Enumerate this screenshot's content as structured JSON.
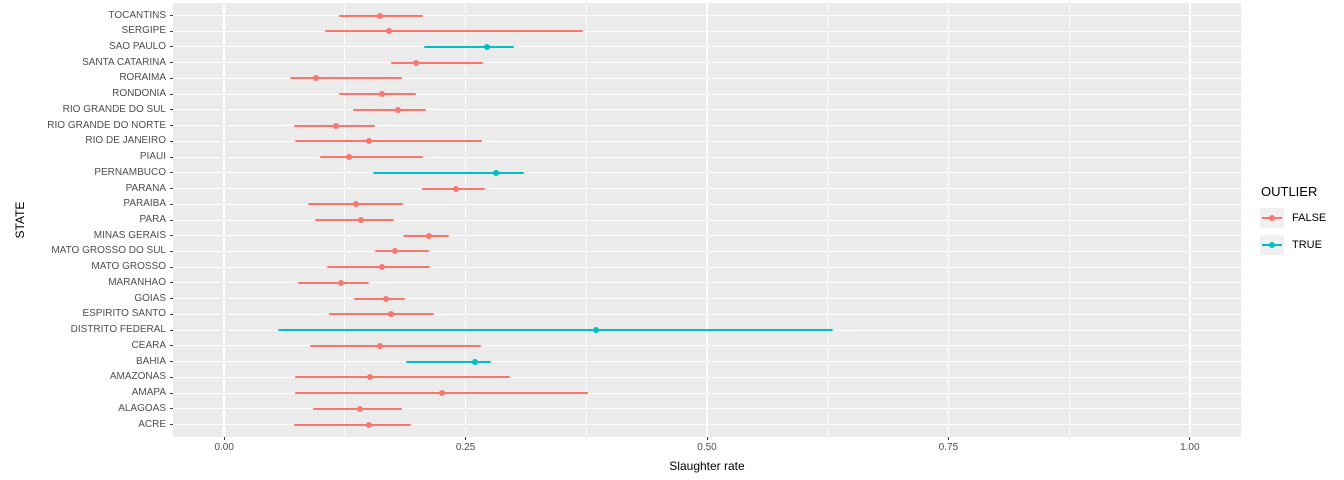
{
  "chart_data": {
    "type": "scatter",
    "title": "",
    "xlabel": "Slaughter rate",
    "ylabel": "STATE",
    "xlim": [
      -0.053,
      1.053
    ],
    "grid": true,
    "x_ticks": [
      {
        "label": "0.00",
        "value": 0.0
      },
      {
        "label": "0.25",
        "value": 0.25
      },
      {
        "label": "0.50",
        "value": 0.5
      },
      {
        "label": "0.75",
        "value": 0.75
      },
      {
        "label": "1.00",
        "value": 1.0
      }
    ],
    "x_minor_values": [
      0.125,
      0.375,
      0.625,
      0.875
    ],
    "legend": {
      "title": "OUTLIER",
      "position": "right",
      "entries": [
        {
          "label": "FALSE",
          "color": "#F8766D"
        },
        {
          "label": "TRUE",
          "color": "#00BFC4"
        }
      ]
    },
    "colors": {
      "false_series": "#F8766D",
      "true_series": "#00BFC4",
      "panel_background": "#EBEBEB",
      "gridline": "#FFFFFF",
      "tick_text": "#4D4D4D",
      "axis_title_text": "#000000"
    },
    "points": [
      {
        "state": "TOCANTINS",
        "value": 0.161,
        "low": 0.119,
        "high": 0.206,
        "outlier": false
      },
      {
        "state": "SERGIPE",
        "value": 0.171,
        "low": 0.104,
        "high": 0.372,
        "outlier": false
      },
      {
        "state": "SAO PAULO",
        "value": 0.272,
        "low": 0.207,
        "high": 0.3,
        "outlier": true
      },
      {
        "state": "SANTA CATARINA",
        "value": 0.199,
        "low": 0.173,
        "high": 0.268,
        "outlier": false
      },
      {
        "state": "RORAIMA",
        "value": 0.095,
        "low": 0.068,
        "high": 0.184,
        "outlier": false
      },
      {
        "state": "RONDONIA",
        "value": 0.163,
        "low": 0.119,
        "high": 0.199,
        "outlier": false
      },
      {
        "state": "RIO GRANDE DO SUL",
        "value": 0.18,
        "low": 0.133,
        "high": 0.209,
        "outlier": false
      },
      {
        "state": "RIO GRANDE DO NORTE",
        "value": 0.116,
        "low": 0.072,
        "high": 0.156,
        "outlier": false
      },
      {
        "state": "RIO DE JANEIRO",
        "value": 0.15,
        "low": 0.073,
        "high": 0.267,
        "outlier": false
      },
      {
        "state": "PIAUI",
        "value": 0.129,
        "low": 0.099,
        "high": 0.206,
        "outlier": false
      },
      {
        "state": "PERNAMBUCO",
        "value": 0.281,
        "low": 0.154,
        "high": 0.31,
        "outlier": true
      },
      {
        "state": "PARANA",
        "value": 0.24,
        "low": 0.205,
        "high": 0.27,
        "outlier": false
      },
      {
        "state": "PARAIBA",
        "value": 0.137,
        "low": 0.087,
        "high": 0.185,
        "outlier": false
      },
      {
        "state": "PARA",
        "value": 0.142,
        "low": 0.094,
        "high": 0.176,
        "outlier": false
      },
      {
        "state": "MINAS GERAIS",
        "value": 0.212,
        "low": 0.185,
        "high": 0.233,
        "outlier": false
      },
      {
        "state": "MATO GROSSO DO SUL",
        "value": 0.177,
        "low": 0.156,
        "high": 0.212,
        "outlier": false
      },
      {
        "state": "MATO GROSSO",
        "value": 0.163,
        "low": 0.106,
        "high": 0.213,
        "outlier": false
      },
      {
        "state": "MARANHAO",
        "value": 0.121,
        "low": 0.076,
        "high": 0.15,
        "outlier": false
      },
      {
        "state": "GOIAS",
        "value": 0.168,
        "low": 0.134,
        "high": 0.187,
        "outlier": false
      },
      {
        "state": "ESPIRITO SANTO",
        "value": 0.173,
        "low": 0.109,
        "high": 0.217,
        "outlier": false
      },
      {
        "state": "DISTRITO FEDERAL",
        "value": 0.385,
        "low": 0.056,
        "high": 0.631,
        "outlier": true
      },
      {
        "state": "CEARA",
        "value": 0.161,
        "low": 0.089,
        "high": 0.266,
        "outlier": false
      },
      {
        "state": "BAHIA",
        "value": 0.26,
        "low": 0.188,
        "high": 0.276,
        "outlier": true
      },
      {
        "state": "AMAZONAS",
        "value": 0.151,
        "low": 0.073,
        "high": 0.296,
        "outlier": false
      },
      {
        "state": "AMAPA",
        "value": 0.226,
        "low": 0.073,
        "high": 0.377,
        "outlier": false
      },
      {
        "state": "ALAGOAS",
        "value": 0.141,
        "low": 0.092,
        "high": 0.184,
        "outlier": false
      },
      {
        "state": "ACRE",
        "value": 0.15,
        "low": 0.072,
        "high": 0.193,
        "outlier": false
      }
    ]
  }
}
